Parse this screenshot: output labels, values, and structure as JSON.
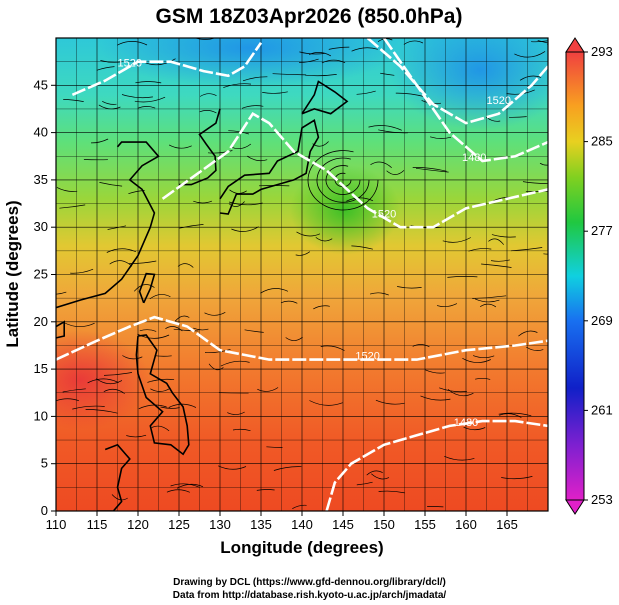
{
  "chart_data": {
    "type": "heatmap",
    "title": "GSM 18Z03Apr2026 (850.0hPa)",
    "xlabel": "Longitude (degrees)",
    "ylabel": "Latitude  (degrees)",
    "xlim": [
      110,
      170
    ],
    "ylim": [
      0,
      50
    ],
    "x_ticks": [
      "110",
      "115",
      "120",
      "125",
      "130",
      "135",
      "140",
      "145",
      "150",
      "155",
      "160",
      "165"
    ],
    "y_ticks": [
      "0",
      "5",
      "10",
      "15",
      "20",
      "25",
      "30",
      "35",
      "40",
      "45"
    ],
    "colorbar": {
      "range": [
        253,
        293
      ],
      "tick_labels": [
        "293",
        "285",
        "277",
        "269",
        "261",
        "253"
      ]
    },
    "contours": [
      {
        "label": "1520",
        "x": 119,
        "y": 47
      },
      {
        "label": "1520",
        "x": 164,
        "y": 43
      },
      {
        "label": "1480",
        "x": 161,
        "y": 37
      },
      {
        "label": "1520",
        "x": 150,
        "y": 31
      },
      {
        "label": "1520",
        "x": 148,
        "y": 16
      },
      {
        "label": "1480",
        "x": 160,
        "y": 9
      }
    ],
    "grid": true
  },
  "credits": {
    "line1": "Drawing by DCL (https://www.gfd-dennou.org/library/dcl/)",
    "line2": "Data from http://database.rish.kyoto-u.ac.jp/arch/jmadata/"
  }
}
